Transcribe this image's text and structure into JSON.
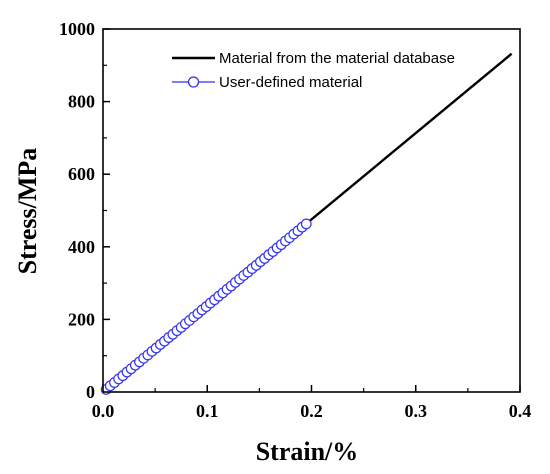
{
  "chart_data": {
    "type": "line",
    "xlabel": "Strain/%",
    "ylabel": "Stress/MPa",
    "xlim": [
      0.0,
      0.4
    ],
    "ylim": [
      0,
      1000
    ],
    "xticks": [
      "0.0",
      "0.1",
      "0.2",
      "0.3",
      "0.4"
    ],
    "yticks": [
      "0",
      "200",
      "400",
      "600",
      "800",
      "1000"
    ],
    "legend_position": "top-right",
    "grid": false,
    "series": [
      {
        "name": "Material from the material database",
        "style": "line",
        "color": "#000000",
        "x": [
          0.0,
          0.392
        ],
        "y": [
          0,
          932
        ]
      },
      {
        "name": "User-defined material",
        "style": "line-open-circles",
        "color": "#3333ee",
        "x": [
          0.003,
          0.007,
          0.011,
          0.015,
          0.019,
          0.023,
          0.027,
          0.031,
          0.035,
          0.039,
          0.043,
          0.047,
          0.051,
          0.055,
          0.059,
          0.063,
          0.067,
          0.071,
          0.075,
          0.079,
          0.083,
          0.087,
          0.091,
          0.095,
          0.099,
          0.103,
          0.107,
          0.111,
          0.115,
          0.119,
          0.123,
          0.127,
          0.131,
          0.135,
          0.139,
          0.143,
          0.147,
          0.151,
          0.155,
          0.159,
          0.163,
          0.167,
          0.171,
          0.175,
          0.179,
          0.183,
          0.187,
          0.191,
          0.195
        ],
        "y": [
          7,
          17,
          26,
          36,
          45,
          55,
          64,
          74,
          83,
          93,
          102,
          112,
          121,
          131,
          140,
          150,
          159,
          169,
          178,
          188,
          197,
          207,
          216,
          226,
          235,
          245,
          254,
          264,
          273,
          283,
          292,
          302,
          311,
          321,
          330,
          340,
          349,
          359,
          368,
          378,
          387,
          397,
          406,
          416,
          425,
          435,
          444,
          454,
          463
        ]
      }
    ]
  }
}
